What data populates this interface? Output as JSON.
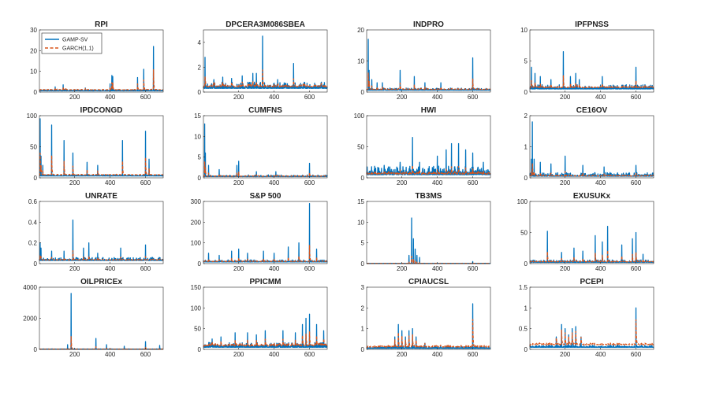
{
  "colors": {
    "gamp": "#0072BD",
    "garch": "#D95319",
    "axis": "#262626"
  },
  "legend": {
    "location": "top-left of first panel",
    "entries": [
      "GAMP-SV",
      "GARCH(1,1)"
    ]
  },
  "chart_data": [
    {
      "type": "line",
      "title": "RPI",
      "xlim": [
        1,
        700
      ],
      "ylim": [
        0,
        30
      ],
      "yticks": [
        0,
        10,
        20,
        30
      ],
      "xticks": [
        200,
        400,
        600
      ],
      "base": 0.6,
      "noise": 0.5,
      "garch_scale": 1.0,
      "spikes": [
        [
          90,
          2.5
        ],
        [
          135,
          3.5
        ],
        [
          150,
          1.5
        ],
        [
          260,
          2
        ],
        [
          400,
          4
        ],
        [
          410,
          8
        ],
        [
          415,
          7.5
        ],
        [
          555,
          7
        ],
        [
          590,
          11
        ],
        [
          645,
          22
        ]
      ]
    },
    {
      "type": "line",
      "title": "DPCERA3M086SBEA",
      "xlim": [
        1,
        700
      ],
      "ylim": [
        0,
        5
      ],
      "yticks": [
        0,
        2,
        4
      ],
      "xticks": [
        200,
        400,
        600
      ],
      "base": 0.3,
      "noise": 0.5,
      "garch_scale": 0.7,
      "spikes": [
        [
          10,
          2.8
        ],
        [
          60,
          1.0
        ],
        [
          110,
          1.2
        ],
        [
          160,
          1.1
        ],
        [
          220,
          1.3
        ],
        [
          280,
          1.5
        ],
        [
          300,
          1.5
        ],
        [
          335,
          4.5
        ],
        [
          420,
          1.0
        ],
        [
          510,
          2.3
        ]
      ]
    },
    {
      "type": "line",
      "title": "INDPRO",
      "xlim": [
        1,
        700
      ],
      "ylim": [
        0,
        20
      ],
      "yticks": [
        0,
        10,
        20
      ],
      "xticks": [
        200,
        400,
        600
      ],
      "base": 0.6,
      "noise": 0.7,
      "garch_scale": 0.7,
      "spikes": [
        [
          10,
          17
        ],
        [
          15,
          7
        ],
        [
          30,
          4
        ],
        [
          60,
          3
        ],
        [
          90,
          3
        ],
        [
          190,
          7
        ],
        [
          270,
          5
        ],
        [
          330,
          3
        ],
        [
          420,
          3
        ],
        [
          600,
          11
        ]
      ]
    },
    {
      "type": "line",
      "title": "IPFPNSS",
      "xlim": [
        1,
        700
      ],
      "ylim": [
        0,
        10
      ],
      "yticks": [
        0,
        5,
        10
      ],
      "xticks": [
        200,
        400,
        600
      ],
      "base": 0.5,
      "noise": 0.7,
      "garch_scale": 0.7,
      "spikes": [
        [
          10,
          4
        ],
        [
          30,
          3
        ],
        [
          60,
          2.5
        ],
        [
          120,
          2
        ],
        [
          190,
          6.5
        ],
        [
          230,
          2.5
        ],
        [
          260,
          3
        ],
        [
          280,
          2
        ],
        [
          410,
          2.5
        ],
        [
          600,
          4
        ]
      ]
    },
    {
      "type": "line",
      "title": "IPDCONGD",
      "xlim": [
        1,
        700
      ],
      "ylim": [
        0,
        100
      ],
      "yticks": [
        0,
        50,
        100
      ],
      "xticks": [
        200,
        400,
        600
      ],
      "base": 3,
      "noise": 2,
      "garch_scale": 0.85,
      "spikes": [
        [
          5,
          95
        ],
        [
          10,
          35
        ],
        [
          20,
          20
        ],
        [
          70,
          85
        ],
        [
          140,
          60
        ],
        [
          190,
          40
        ],
        [
          270,
          25
        ],
        [
          330,
          20
        ],
        [
          470,
          60
        ],
        [
          600,
          75
        ],
        [
          620,
          30
        ]
      ]
    },
    {
      "type": "line",
      "title": "CUMFNS",
      "xlim": [
        1,
        700
      ],
      "ylim": [
        0,
        15
      ],
      "yticks": [
        0,
        5,
        10,
        15
      ],
      "xticks": [
        200,
        400,
        600
      ],
      "base": 0.3,
      "noise": 0.4,
      "garch_scale": 0.6,
      "spikes": [
        [
          8,
          13
        ],
        [
          12,
          6
        ],
        [
          30,
          3
        ],
        [
          90,
          2
        ],
        [
          190,
          3
        ],
        [
          200,
          4
        ],
        [
          300,
          1.5
        ],
        [
          410,
          1.5
        ],
        [
          600,
          3.5
        ]
      ]
    },
    {
      "type": "line",
      "title": "HWI",
      "xlim": [
        1,
        700
      ],
      "ylim": [
        0,
        100
      ],
      "yticks": [
        0,
        50,
        100
      ],
      "xticks": [
        200,
        400,
        600
      ],
      "base": 5,
      "noise": 14,
      "garch_scale": 0.5,
      "spikes": [
        [
          50,
          15
        ],
        [
          100,
          20
        ],
        [
          190,
          25
        ],
        [
          260,
          65
        ],
        [
          300,
          25
        ],
        [
          400,
          35
        ],
        [
          450,
          45
        ],
        [
          480,
          55
        ],
        [
          520,
          55
        ],
        [
          560,
          45
        ],
        [
          600,
          40
        ],
        [
          660,
          25
        ]
      ]
    },
    {
      "type": "line",
      "title": "CE16OV",
      "xlim": [
        1,
        700
      ],
      "ylim": [
        0,
        2
      ],
      "yticks": [
        0,
        1,
        2
      ],
      "xticks": [
        200,
        400,
        600
      ],
      "base": 0.05,
      "noise": 0.12,
      "garch_scale": 0.5,
      "spikes": [
        [
          10,
          0.6
        ],
        [
          15,
          1.8
        ],
        [
          25,
          0.6
        ],
        [
          60,
          0.5
        ],
        [
          120,
          0.45
        ],
        [
          200,
          0.7
        ],
        [
          300,
          0.4
        ],
        [
          420,
          0.35
        ],
        [
          600,
          0.4
        ]
      ]
    },
    {
      "type": "line",
      "title": "UNRATE",
      "xlim": [
        1,
        700
      ],
      "ylim": [
        0,
        0.6
      ],
      "yticks": [
        0,
        0.2,
        0.4,
        0.6
      ],
      "xticks": [
        200,
        400,
        600
      ],
      "base": 0.03,
      "noise": 0.03,
      "garch_scale": 0.5,
      "spikes": [
        [
          5,
          0.2
        ],
        [
          10,
          0.15
        ],
        [
          70,
          0.12
        ],
        [
          140,
          0.12
        ],
        [
          190,
          0.42
        ],
        [
          250,
          0.15
        ],
        [
          280,
          0.2
        ],
        [
          330,
          0.1
        ],
        [
          460,
          0.15
        ],
        [
          600,
          0.18
        ]
      ]
    },
    {
      "type": "line",
      "title": "S&P 500",
      "xlim": [
        1,
        700
      ],
      "ylim": [
        0,
        300
      ],
      "yticks": [
        0,
        100,
        200,
        300
      ],
      "xticks": [
        200,
        400,
        600
      ],
      "base": 8,
      "noise": 10,
      "garch_scale": 0.6,
      "spikes": [
        [
          30,
          50
        ],
        [
          90,
          40
        ],
        [
          160,
          60
        ],
        [
          200,
          70
        ],
        [
          250,
          50
        ],
        [
          340,
          60
        ],
        [
          400,
          50
        ],
        [
          480,
          80
        ],
        [
          540,
          100
        ],
        [
          600,
          290
        ],
        [
          640,
          70
        ]
      ]
    },
    {
      "type": "line",
      "title": "TB3MS",
      "xlim": [
        1,
        700
      ],
      "ylim": [
        0,
        15
      ],
      "yticks": [
        0,
        5,
        10,
        15
      ],
      "xticks": [
        200,
        400,
        600
      ],
      "base": 0.03,
      "noise": 0.05,
      "garch_scale": 0.35,
      "spikes": [
        [
          240,
          2
        ],
        [
          255,
          11
        ],
        [
          265,
          6
        ],
        [
          275,
          3.5
        ],
        [
          285,
          2
        ],
        [
          300,
          1.5
        ],
        [
          600,
          0.5
        ]
      ]
    },
    {
      "type": "line",
      "title": "EXUSUKx",
      "xlim": [
        1,
        700
      ],
      "ylim": [
        0,
        100
      ],
      "yticks": [
        0,
        50,
        100
      ],
      "xticks": [
        200,
        400,
        600
      ],
      "base": 2,
      "noise": 4,
      "garch_scale": 0.7,
      "spikes": [
        [
          100,
          52
        ],
        [
          180,
          18
        ],
        [
          250,
          25
        ],
        [
          300,
          20
        ],
        [
          370,
          45
        ],
        [
          410,
          35
        ],
        [
          440,
          60
        ],
        [
          520,
          30
        ],
        [
          580,
          40
        ],
        [
          600,
          50
        ],
        [
          640,
          15
        ]
      ]
    },
    {
      "type": "line",
      "title": "OILPRICEx",
      "xlim": [
        1,
        700
      ],
      "ylim": [
        0,
        4000
      ],
      "yticks": [
        0,
        2000,
        4000
      ],
      "xticks": [
        200,
        400,
        600
      ],
      "base": 10,
      "noise": 20,
      "garch_scale": 0.5,
      "spikes": [
        [
          160,
          300
        ],
        [
          180,
          3600
        ],
        [
          320,
          700
        ],
        [
          380,
          300
        ],
        [
          480,
          200
        ],
        [
          600,
          500
        ],
        [
          680,
          250
        ]
      ]
    },
    {
      "type": "line",
      "title": "PPICMM",
      "xlim": [
        1,
        700
      ],
      "ylim": [
        0,
        150
      ],
      "yticks": [
        0,
        50,
        100,
        150
      ],
      "xticks": [
        200,
        400,
        600
      ],
      "base": 5,
      "noise": 12,
      "garch_scale": 0.9,
      "spikes": [
        [
          50,
          25
        ],
        [
          100,
          30
        ],
        [
          180,
          40
        ],
        [
          250,
          40
        ],
        [
          300,
          35
        ],
        [
          350,
          45
        ],
        [
          450,
          45
        ],
        [
          520,
          40
        ],
        [
          560,
          60
        ],
        [
          580,
          75
        ],
        [
          600,
          85
        ],
        [
          640,
          60
        ],
        [
          680,
          45
        ]
      ]
    },
    {
      "type": "line",
      "title": "CPIAUCSL",
      "xlim": [
        1,
        700
      ],
      "ylim": [
        0,
        3
      ],
      "yticks": [
        0,
        1,
        2,
        3
      ],
      "xticks": [
        200,
        400,
        600
      ],
      "base": 0.05,
      "noise": 0.1,
      "garch_scale": 1.35,
      "spikes": [
        [
          160,
          0.6
        ],
        [
          180,
          1.2
        ],
        [
          200,
          0.9
        ],
        [
          220,
          0.6
        ],
        [
          240,
          0.9
        ],
        [
          260,
          1.0
        ],
        [
          280,
          0.6
        ],
        [
          330,
          0.3
        ],
        [
          600,
          2.2
        ]
      ]
    },
    {
      "type": "line",
      "title": "PCEPI",
      "xlim": [
        1,
        700
      ],
      "ylim": [
        0,
        1.5
      ],
      "yticks": [
        0,
        0.5,
        1,
        1.5
      ],
      "xticks": [
        200,
        400,
        600
      ],
      "base": 0.05,
      "noise": 0.05,
      "garch_scale": 1.4,
      "spikes": [
        [
          150,
          0.3
        ],
        [
          180,
          0.6
        ],
        [
          200,
          0.5
        ],
        [
          220,
          0.35
        ],
        [
          240,
          0.5
        ],
        [
          260,
          0.55
        ],
        [
          290,
          0.3
        ],
        [
          600,
          1.0
        ]
      ]
    }
  ]
}
